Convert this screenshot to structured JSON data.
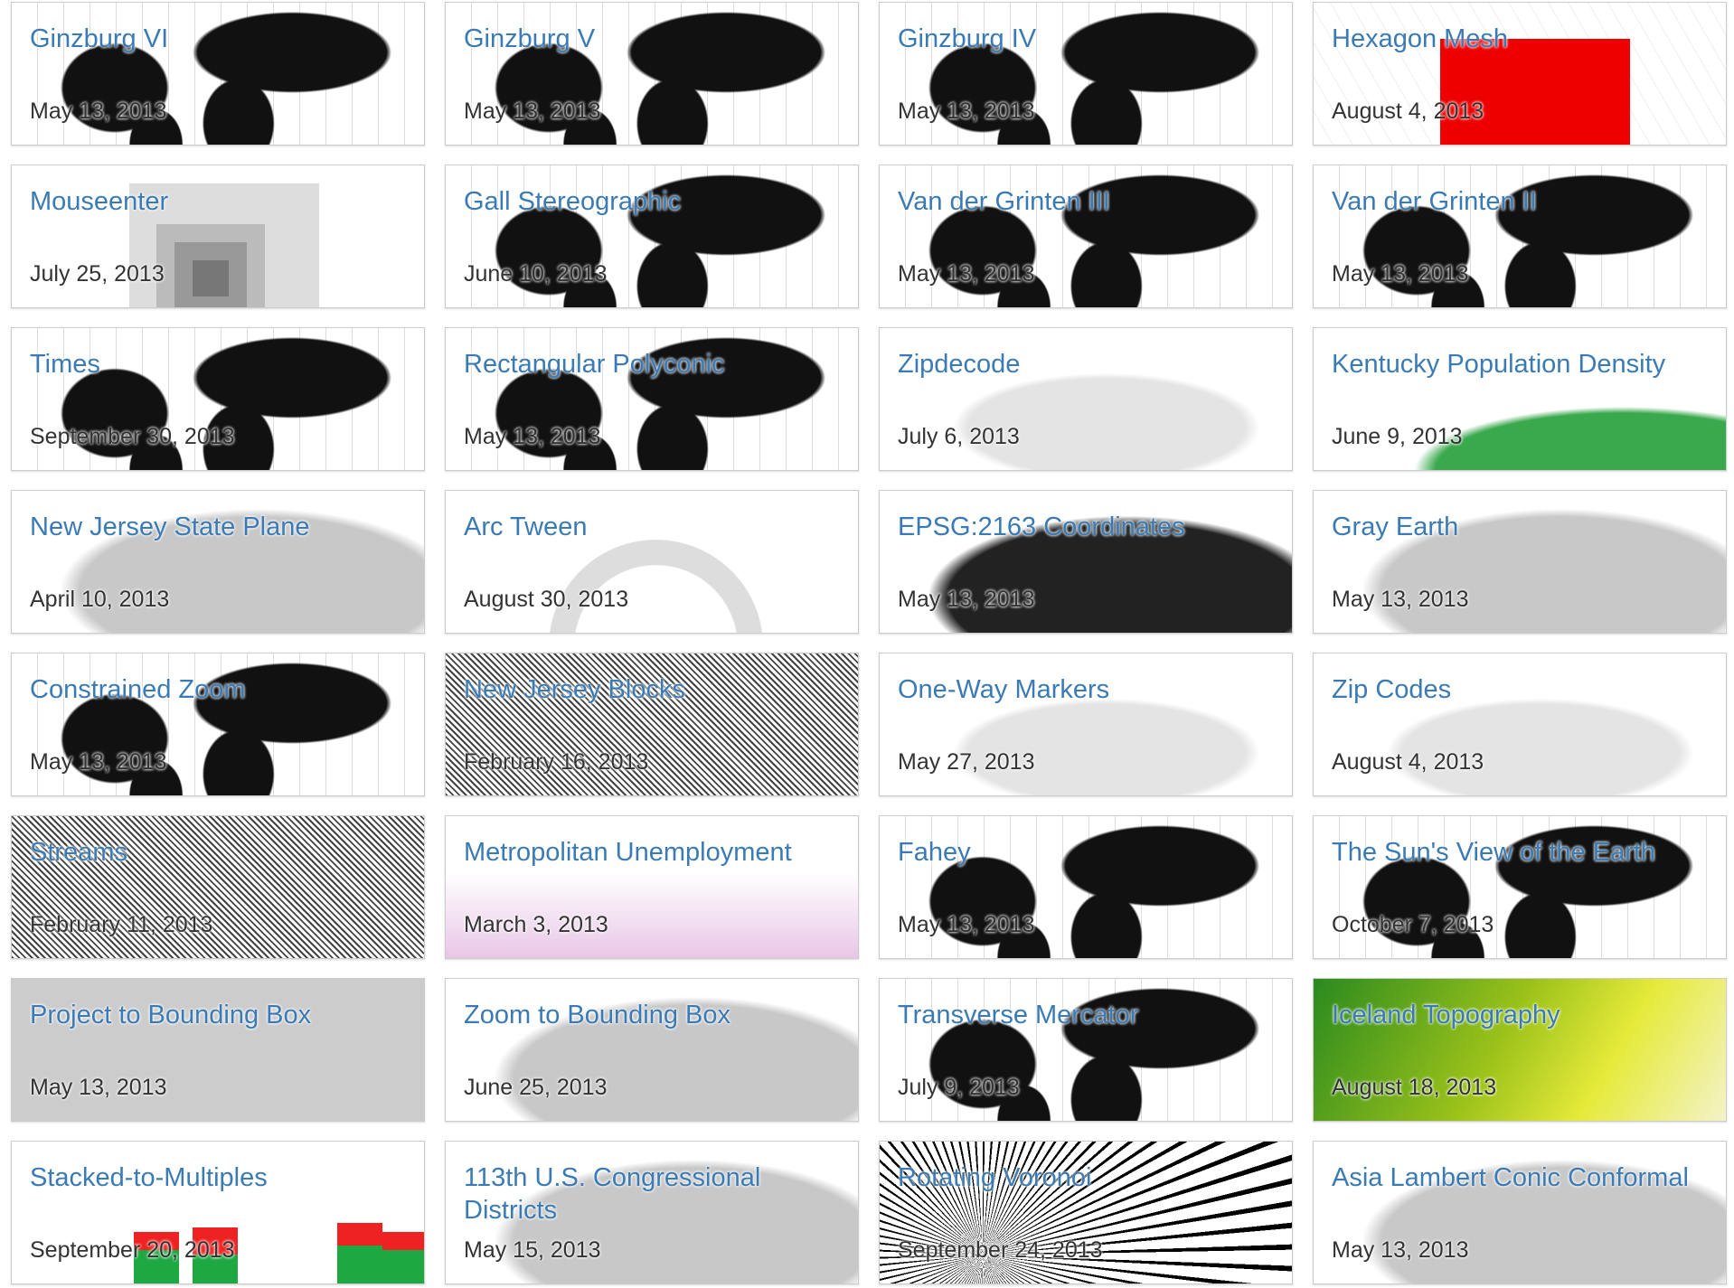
{
  "items": [
    {
      "title": "Ginzburg VI",
      "date": "May 13, 2013"
    },
    {
      "title": "Ginzburg V",
      "date": "May 13, 2013"
    },
    {
      "title": "Ginzburg IV",
      "date": "May 13, 2013"
    },
    {
      "title": "Hexagon Mesh",
      "date": "August 4, 2013"
    },
    {
      "title": "Mouseenter",
      "date": "July 25, 2013"
    },
    {
      "title": "Gall Stereographic",
      "date": "June 10, 2013"
    },
    {
      "title": "Van der Grinten III",
      "date": "May 13, 2013"
    },
    {
      "title": "Van der Grinten II",
      "date": "May 13, 2013"
    },
    {
      "title": "Times",
      "date": "September 30, 2013"
    },
    {
      "title": "Rectangular Polyconic",
      "date": "May 13, 2013"
    },
    {
      "title": "Zipdecode",
      "date": "July 6, 2013"
    },
    {
      "title": "Kentucky Population Density",
      "date": "June 9, 2013"
    },
    {
      "title": "New Jersey State Plane",
      "date": "April 10, 2013"
    },
    {
      "title": "Arc Tween",
      "date": "August 30, 2013"
    },
    {
      "title": "EPSG:2163 Coordinates",
      "date": "May 13, 2013"
    },
    {
      "title": "Gray Earth",
      "date": "May 13, 2013"
    },
    {
      "title": "Constrained Zoom",
      "date": "May 13, 2013"
    },
    {
      "title": "New Jersey Blocks",
      "date": "February 16, 2013"
    },
    {
      "title": "One-Way Markers",
      "date": "May 27, 2013"
    },
    {
      "title": "Zip Codes",
      "date": "August 4, 2013"
    },
    {
      "title": "Streams",
      "date": "February 11, 2013"
    },
    {
      "title": "Metropolitan Unemployment",
      "date": "March 3, 2013"
    },
    {
      "title": "Fahey",
      "date": "May 13, 2013"
    },
    {
      "title": "The Sun's View of the Earth",
      "date": "October 7, 2013"
    },
    {
      "title": "Project to Bounding Box",
      "date": "May 13, 2013"
    },
    {
      "title": "Zoom to Bounding Box",
      "date": "June 25, 2013"
    },
    {
      "title": "Transverse Mercator",
      "date": "July 9, 2013"
    },
    {
      "title": "Iceland Topography",
      "date": "August 18, 2013"
    },
    {
      "title": "Stacked-to-Multiples",
      "date": "September 20, 2013"
    },
    {
      "title": "113th U.S. Congressional Districts",
      "date": "May 15, 2013"
    },
    {
      "title": "Rotating Voronoi",
      "date": "September 24, 2013"
    },
    {
      "title": "Asia Lambert Conic Conformal",
      "date": "May 13, 2013"
    }
  ]
}
